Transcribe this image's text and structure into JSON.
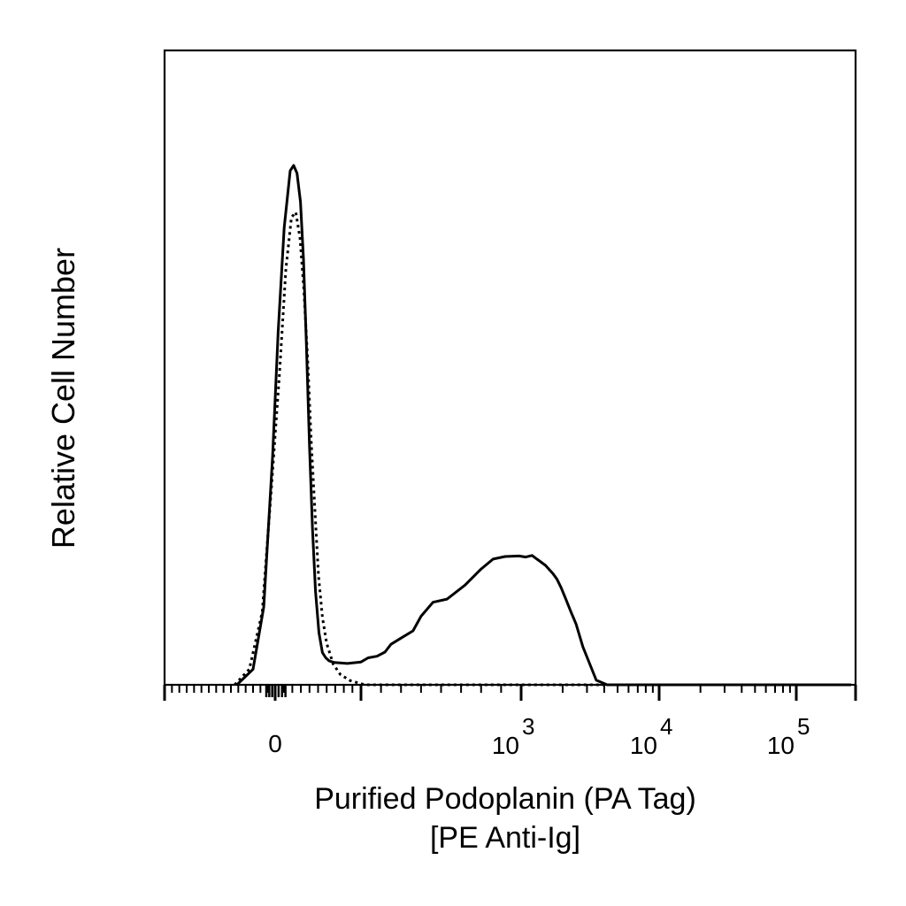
{
  "chart_data": {
    "type": "line",
    "title": "",
    "xlabel": "Purified Podoplanin (PA Tag)",
    "xlabel_line2": "[PE Anti-Ig]",
    "ylabel": "Relative Cell Number",
    "x_scale": "biexponential",
    "xlim": [
      -300,
      200000
    ],
    "ylim": [
      0,
      1.0
    ],
    "grid": false,
    "legend": "none",
    "x_ticks": [
      {
        "value": 0,
        "base": "0",
        "exp": ""
      },
      {
        "value": 1000,
        "base": "10",
        "exp": "3"
      },
      {
        "value": 10000,
        "base": "10",
        "exp": "4"
      },
      {
        "value": 100000,
        "base": "10",
        "exp": "5"
      }
    ],
    "series": [
      {
        "style": "solid",
        "color": "#000000",
        "x": [
          -104,
          -60,
          -31,
          -7,
          7,
          21,
          35,
          43,
          51,
          59,
          66,
          73,
          80,
          87,
          94,
          102,
          110,
          118,
          126,
          138,
          152,
          168,
          200,
          236,
          280,
          320,
          350,
          400,
          460,
          500,
          560,
          630,
          720,
          800,
          860,
          920,
          990,
          1080,
          1200,
          1300,
          1400,
          1500,
          1600,
          1700,
          1820,
          1950,
          2100,
          2300,
          2500,
          2800,
          3200,
          3500,
          4200,
          10000,
          100000,
          190000
        ],
        "y": [
          0.0,
          0.03,
          0.15,
          0.44,
          0.68,
          0.88,
          0.99,
          1.0,
          0.985,
          0.93,
          0.82,
          0.65,
          0.46,
          0.3,
          0.18,
          0.1,
          0.062,
          0.052,
          0.046,
          0.043,
          0.042,
          0.041,
          0.044,
          0.052,
          0.055,
          0.063,
          0.078,
          0.09,
          0.104,
          0.132,
          0.159,
          0.165,
          0.192,
          0.223,
          0.242,
          0.247,
          0.248,
          0.246,
          0.249,
          0.242,
          0.236,
          0.23,
          0.222,
          0.214,
          0.203,
          0.187,
          0.166,
          0.14,
          0.117,
          0.073,
          0.035,
          0.009,
          0.0,
          0.0,
          0.0,
          0.0
        ]
      },
      {
        "style": "dotted",
        "color": "#000000",
        "x": [
          -110,
          -70,
          -35,
          -10,
          10,
          25,
          38,
          48,
          58,
          67,
          76,
          84,
          93,
          101,
          110,
          120,
          135,
          152,
          175,
          220,
          300,
          500,
          1000,
          10000,
          100000,
          190000
        ],
        "y": [
          0.0,
          0.03,
          0.14,
          0.38,
          0.6,
          0.8,
          0.9,
          0.91,
          0.86,
          0.76,
          0.62,
          0.47,
          0.33,
          0.21,
          0.13,
          0.08,
          0.04,
          0.02,
          0.008,
          0.0,
          0.0,
          0.0,
          0.0,
          0.0,
          0.0,
          0.0
        ]
      }
    ]
  }
}
